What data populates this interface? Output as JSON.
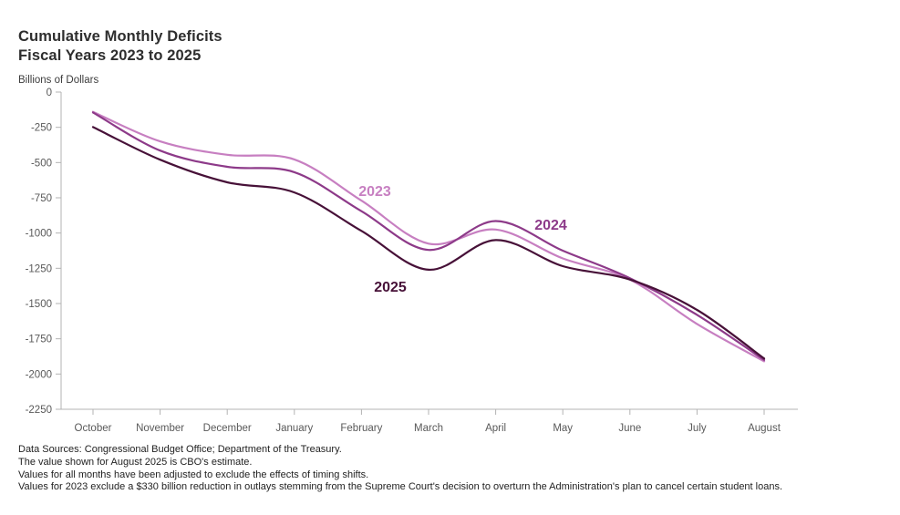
{
  "header": {
    "title_line1": "Cumulative Monthly Deficits",
    "title_line2": "Fiscal Years 2023 to 2025",
    "units_label": "Billions of Dollars"
  },
  "chart_data": {
    "type": "line",
    "title": "Cumulative Monthly Deficits Fiscal Years 2023 to 2025",
    "ylabel": "Billions of Dollars",
    "xlabel": "",
    "grid": false,
    "legend_position": "inline-labels-on-lines",
    "categories": [
      "October",
      "November",
      "December",
      "January",
      "February",
      "March",
      "April",
      "May",
      "June",
      "July",
      "August"
    ],
    "ylim": [
      0,
      -2250
    ],
    "yticks": [
      0,
      -250,
      -500,
      -750,
      -1000,
      -1250,
      -1500,
      -1750,
      -2000,
      -2250
    ],
    "series": [
      {
        "name": "2023",
        "color": "#c77fc1",
        "values": [
          -140,
          -350,
          -445,
          -478,
          -770,
          -1075,
          -975,
          -1180,
          -1330,
          -1645,
          -1910
        ]
      },
      {
        "name": "2024",
        "color": "#8d3a89",
        "values": [
          -145,
          -415,
          -530,
          -568,
          -845,
          -1120,
          -915,
          -1125,
          -1320,
          -1580,
          -1900
        ]
      },
      {
        "name": "2025",
        "color": "#471138",
        "values": [
          -248,
          -480,
          -640,
          -712,
          -985,
          -1260,
          -1050,
          -1235,
          -1330,
          -1545,
          -1890
        ]
      }
    ]
  },
  "footnotes": [
    "Data Sources: Congressional Budget Office; Department of the Treasury.",
    "The value shown for August 2025 is CBO's estimate.",
    "Values for all months have been adjusted to exclude the effects of timing shifts.",
    "Values for 2023 exclude a $330 billion reduction in outlays stemming from the Supreme Court's decision to overturn the Administration's plan to cancel certain student loans."
  ]
}
